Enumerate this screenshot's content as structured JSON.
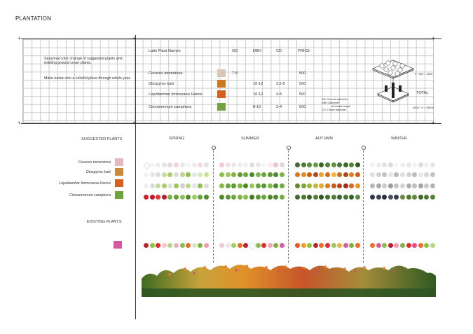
{
  "title": "PLANTATION",
  "description": {
    "line1": "Seasonal color change of suggested plants and existing ground cover plants.",
    "line2": "Make natian into a colorful place through whole year."
  },
  "table": {
    "headers": {
      "name": "Latin Plant Names",
      "gd": "GD",
      "dbh": "DBH",
      "cd": "CD",
      "price": "PRICE"
    },
    "rows": [
      {
        "name": "Cerasus tomentosa",
        "gd": "7-8",
        "dbh": "",
        "cd": "",
        "price": "500",
        "thumb": "#d8c7b7"
      },
      {
        "name": "Diospyros kaki",
        "gd": "",
        "dbh": "10-12",
        "cd": "3.5-5",
        "price": "500",
        "thumb": "#cc7a22"
      },
      {
        "name": "Liquidambar formosana Hance",
        "gd": "",
        "dbh": "10-12",
        "cd": "4-5",
        "price": "500",
        "thumb": "#d2601f"
      },
      {
        "name": "Cinnamomum camphora",
        "gd": "",
        "dbh": "8-10",
        "cd": "3-4",
        "price": "500",
        "thumb": "#74a240"
      }
    ]
  },
  "legend": {
    "gd": "GD:    Ground diameter",
    "dbh1": "DBH  Diameter",
    "dbh2": "at breast height",
    "cd": "CD:    Crown diameter"
  },
  "calc": {
    "formula1": "9 * 500 = 4500",
    "total": "TOTAL",
    "formula2": "4500 * 4 = 18000"
  },
  "suggested_label": "SUGGESTED PLANTS",
  "existing_label": "EXISTING PLANTS",
  "seasons": [
    "SPRING",
    "SUMMER",
    "AUTUMN",
    "WINTER"
  ],
  "suggested_plants": [
    {
      "name": "Cerasus tomentosa",
      "thumb": "#e6b9c0"
    },
    {
      "name": "Diospyros kaki",
      "thumb": "#c9893a"
    },
    {
      "name": "Liquidambar formosana Hance",
      "thumb": "#d8621d"
    },
    {
      "name": "Cinnamomum camphora",
      "thumb": "#6ea33e"
    }
  ],
  "existing_thumb": "#d65aa0",
  "colors": {
    "row_cerasus": [
      [
        "#fafafa",
        "#f3f3f3",
        "#ececec",
        "#e4e4e4",
        "#dcdcdc",
        "#f2d0d6",
        "#e8e8e8",
        "#f5f5f5",
        "#ededed",
        "#f4d9de",
        "#e2e2e2"
      ],
      [
        "#f3c8d0",
        "#f6dde2",
        "#e9e9e9",
        "#ececec",
        "#f0f0f0",
        "#dedede",
        "#e6e6e6",
        "#f5f5f5",
        "#ffe9ee",
        "#e8c4cc",
        "#d9d9d9"
      ],
      [
        "#3e6b2f",
        "#4a7a33",
        "#5a8a3b",
        "#6b9b42",
        "#3a6328",
        "#4f8035",
        "#5f9140",
        "#457530",
        "#3a6a2c",
        "#558737",
        "#2f5a25"
      ],
      [
        "#f3f3f3",
        "#ebebeb",
        "#e3e3e3",
        "#dadada",
        "#f7f7f7",
        "#efefef",
        "#e7e7e7",
        "#f3f3f3",
        "#dcdcdc",
        "#f0f0f0",
        "#e5e5e5"
      ]
    ],
    "row_kaki": [
      [
        "#f3f3f3",
        "#e6e6e6",
        "#dadada",
        "#c6dc9a",
        "#a9cf6a",
        "#dadada",
        "#b9d886",
        "#8fc04f",
        "#e5e5e5",
        "#d8e8b8",
        "#c8e09a"
      ],
      [
        "#8cbc49",
        "#9cc75a",
        "#7fb342",
        "#5d9a33",
        "#6fa63b",
        "#4b872c",
        "#80b64a",
        "#6aa33a",
        "#5a9632",
        "#4a8a2b",
        "#7db545"
      ],
      [
        "#d7761c",
        "#e18a23",
        "#c95a1a",
        "#b8451a",
        "#e4a12d",
        "#d26b1e",
        "#f0b43e",
        "#c86f22",
        "#a84a1c",
        "#e27f25",
        "#cf5d1c"
      ],
      [
        "#e1e1e1",
        "#d0d0d0",
        "#c2c2c2",
        "#e4e4e4",
        "#b8b8b8",
        "#dedede",
        "#cfcfcf",
        "#bdbdbd",
        "#e9e9e9",
        "#d6d6d6",
        "#c4c4c4"
      ]
    ],
    "row_liquid": [
      [
        "#f0f0f0",
        "#dcdcdc",
        "#c6dc9a",
        "#a9cf6a",
        "#e1e1e1",
        "#9cc75a",
        "#d0d0d0",
        "#b9d886",
        "#e6e6e6",
        "#8fc04f",
        "#dcdcdc"
      ],
      [
        "#86b94a",
        "#6ea53c",
        "#5d9a33",
        "#7fb342",
        "#4c8a2c",
        "#9cc75a",
        "#6aa33a",
        "#5a9632",
        "#82b847",
        "#4a8a2b",
        "#73ac40"
      ],
      [
        "#5d8a2b",
        "#7ca338",
        "#9cb83c",
        "#c7b634",
        "#e0a82e",
        "#d87a22",
        "#c85a1d",
        "#b8431a",
        "#9d2c1a",
        "#d06a20",
        "#e3942a"
      ],
      [
        "#b8b8b8",
        "#a8a8a8",
        "#cbcbcb",
        "#9a9a9a",
        "#c2c2c2",
        "#d3d3d3",
        "#adadad",
        "#bfbfbf",
        "#a3a3a3",
        "#c8c8c8",
        "#b4b4b4"
      ]
    ],
    "row_cinna": [
      [
        "#d61f26",
        "#c4162d",
        "#e2362e",
        "#b71c2b",
        "#7cb342",
        "#689f38",
        "#8bc34a",
        "#558b2f",
        "#9ccc65",
        "#6aa33a",
        "#4c8a2c"
      ],
      [
        "#4c8a2c",
        "#5d9a33",
        "#6ea53c",
        "#7fb342",
        "#8cbc49",
        "#3f7a27",
        "#5a9632",
        "#6aa33a",
        "#4a8a2b",
        "#558737",
        "#73ac40"
      ],
      [
        "#3f6a2a",
        "#4d7a31",
        "#3a5f27",
        "#577f35",
        "#2f5623",
        "#436e2d",
        "#52803a",
        "#3a6428",
        "#4a7532",
        "#33602a",
        "#5a8a3b"
      ],
      [
        "#303646",
        "#3a3f52",
        "#2b3040",
        "#4b5066",
        "#363b4d",
        "#6b8a3e",
        "#4f7a32",
        "#5d8a3b",
        "#3f6a2a",
        "#4c7a31",
        "#567f36"
      ]
    ],
    "row_existing": [
      [
        "#c21f2c",
        "#8cc43f",
        "#e02b2f",
        "#f3c6d0",
        "#b8d68a",
        "#e4b3c3",
        "#8cbc49",
        "#f06b24",
        "#d9e8c2",
        "#7fb342",
        "#f39ab0"
      ],
      [
        "#f3c6d0",
        "#e8e8e8",
        "#a0d060",
        "#f06b24",
        "#c21f2c",
        "#ffffff",
        "#8cbc49",
        "#e02b2f",
        "#f2a5b8",
        "#7fb342",
        "#d85aa0"
      ],
      [
        "#e85a1e",
        "#f39a2a",
        "#8cc43f",
        "#c21f2c",
        "#f06b24",
        "#e02b2f",
        "#9cc75a",
        "#f0b43e",
        "#d85aa0",
        "#7fb342",
        "#f06b24"
      ],
      [
        "#ee6b2a",
        "#d85aa0",
        "#8cbc49",
        "#c21f2c",
        "#f39ab0",
        "#7fb342",
        "#e02b2f",
        "#e64c8a",
        "#f06b24",
        "#8cc43f",
        "#b8d68a"
      ]
    ]
  }
}
